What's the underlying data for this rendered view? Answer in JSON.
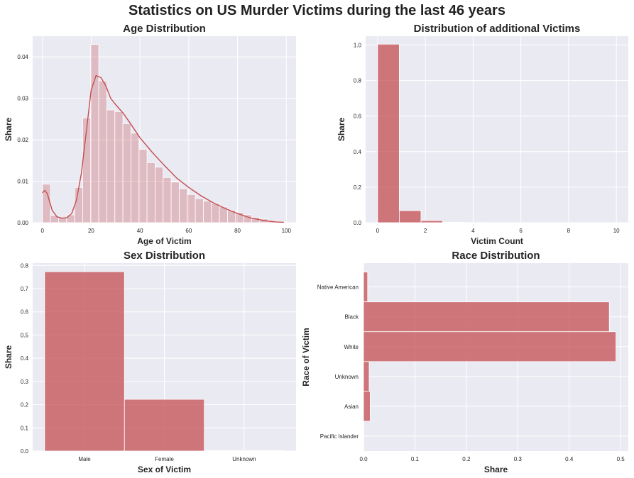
{
  "figure": {
    "title": "Statistics on US Murder Victims during the last 46 years",
    "bar_color": "#c44e52",
    "panel_bg": "#eaeaf2"
  },
  "chart_data": [
    {
      "id": "age",
      "type": "bar",
      "title": "Age Distribution",
      "xlabel": "Age of Victim",
      "ylabel": "Share",
      "xlim": [
        -4,
        104
      ],
      "ylim": [
        0,
        0.045
      ],
      "xticks": [
        0,
        20,
        40,
        60,
        80,
        100
      ],
      "yticks": [
        0.0,
        0.01,
        0.02,
        0.03,
        0.04
      ],
      "ytick_labels": [
        "0.00",
        "0.01",
        "0.02",
        "0.03",
        "0.04"
      ],
      "bin_width": 3.3,
      "bin_start": 0,
      "values": [
        0.0093,
        0.0018,
        0.0013,
        0.0019,
        0.0085,
        0.0253,
        0.043,
        0.0342,
        0.0272,
        0.0268,
        0.0239,
        0.0216,
        0.0177,
        0.0145,
        0.0134,
        0.0109,
        0.0098,
        0.0082,
        0.0068,
        0.0058,
        0.0052,
        0.0046,
        0.0038,
        0.003,
        0.0025,
        0.0019,
        0.0013,
        0.0009,
        0.0006,
        0.0003
      ],
      "kde_x": [
        0,
        1,
        2,
        4,
        6,
        8,
        10,
        12,
        14,
        16,
        18,
        20,
        22,
        24,
        26,
        28,
        30,
        33,
        36,
        40,
        45,
        50,
        55,
        60,
        65,
        70,
        75,
        80,
        85,
        90,
        95,
        99
      ],
      "kde_y": [
        0.0072,
        0.0078,
        0.007,
        0.003,
        0.0014,
        0.0011,
        0.0012,
        0.0022,
        0.0055,
        0.012,
        0.022,
        0.032,
        0.0355,
        0.035,
        0.033,
        0.03,
        0.0285,
        0.0265,
        0.024,
        0.0205,
        0.017,
        0.0138,
        0.0108,
        0.0085,
        0.0065,
        0.0048,
        0.0034,
        0.0022,
        0.0012,
        0.0006,
        0.0002,
        0.0001
      ]
    },
    {
      "id": "additional",
      "type": "bar",
      "title": "Distribution of additional Victims",
      "xlabel": "Victim Count",
      "ylabel": "Share",
      "xlim": [
        -0.5,
        10.5
      ],
      "ylim": [
        0,
        1.05
      ],
      "xticks": [
        0,
        2,
        4,
        6,
        8,
        10
      ],
      "yticks": [
        0.0,
        0.2,
        0.4,
        0.6,
        0.8,
        1.0
      ],
      "ytick_labels": [
        "0.0",
        "0.2",
        "0.4",
        "0.6",
        "0.8",
        "1.0"
      ],
      "bin_width": 0.909,
      "bin_start": 0,
      "values": [
        1.005,
        0.068,
        0.012,
        0.003,
        0.001,
        0.0,
        0.0,
        0.0,
        0.0,
        0.0,
        0.0
      ]
    },
    {
      "id": "sex",
      "type": "bar",
      "title": "Sex Distribution",
      "xlabel": "Sex of Victim",
      "ylabel": "Share",
      "ylim": [
        0,
        0.81
      ],
      "yticks": [
        0.0,
        0.1,
        0.2,
        0.3,
        0.4,
        0.5,
        0.6,
        0.7,
        0.8
      ],
      "ytick_labels": [
        "0.0",
        "0.1",
        "0.2",
        "0.3",
        "0.4",
        "0.5",
        "0.6",
        "0.7",
        "0.8"
      ],
      "categories": [
        "Male",
        "Female",
        "Unknown"
      ],
      "values": [
        0.773,
        0.223,
        0.002
      ]
    },
    {
      "id": "race",
      "type": "bar",
      "orientation": "horizontal",
      "title": "Race Distribution",
      "xlabel": "Share",
      "ylabel": "Race of Victim",
      "xlim": [
        0,
        0.515
      ],
      "xticks": [
        0.0,
        0.1,
        0.2,
        0.3,
        0.4,
        0.5
      ],
      "xtick_labels": [
        "0.0",
        "0.1",
        "0.2",
        "0.3",
        "0.4",
        "0.5"
      ],
      "categories": [
        "Native American",
        "Black",
        "White",
        "Unknown",
        "Asian",
        "Pacific Islander"
      ],
      "values": [
        0.008,
        0.478,
        0.491,
        0.011,
        0.013,
        0.0005
      ]
    }
  ]
}
